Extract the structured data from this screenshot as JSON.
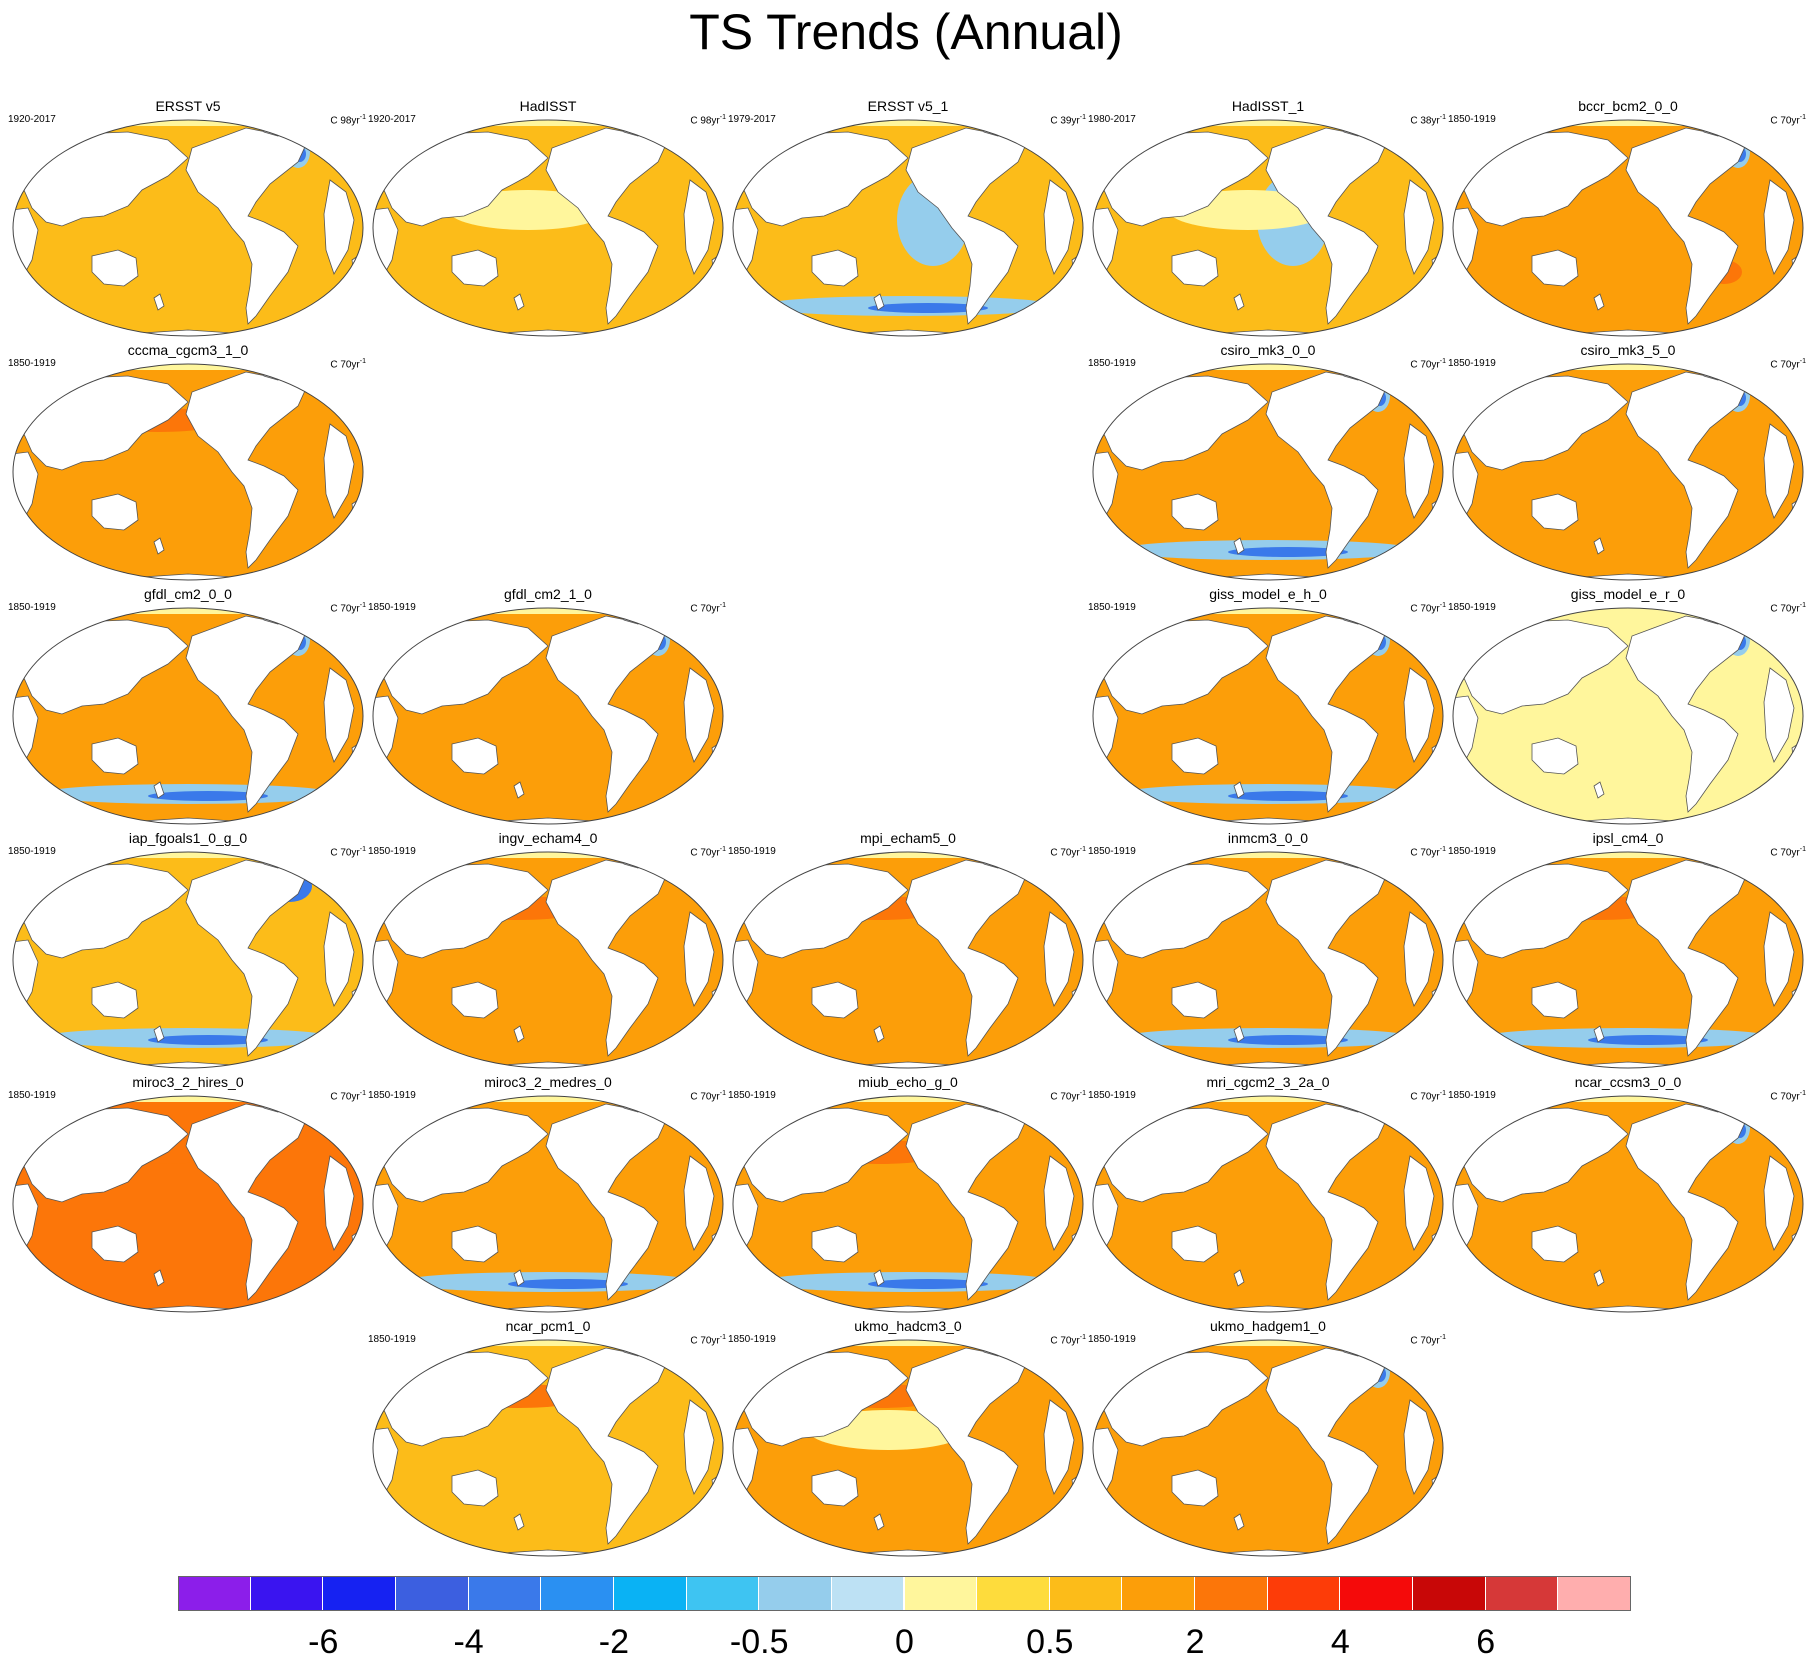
{
  "title": "TS Trends (Annual)",
  "legend_colors": [
    "#8c1eea",
    "#3a14f0",
    "#1622f2",
    "#3c5fe0",
    "#3a79ea",
    "#2a90f2",
    "#0ab2f4",
    "#3ec4f2",
    "#95cdec",
    "#bde1f4",
    "#fff69c",
    "#fedc3c",
    "#fcbc19",
    "#fc9e09",
    "#fc7609",
    "#fd3c08",
    "#f50a0a",
    "#c80707",
    "#d63838",
    "#ffaeae"
  ],
  "legend_labels": [
    "-6",
    "-4",
    "-2",
    "-0.5",
    "0",
    "0.5",
    "2",
    "4",
    "6"
  ],
  "ocean_colors": {
    "cool": "#fcbc19",
    "warm": "#fc9e09",
    "hot": "#fc7609",
    "pale": "#fff69c",
    "blue": "#95cdec",
    "deep_blue": "#3a79ea",
    "purple": "#3a14f0"
  },
  "panels": [
    {
      "name": "ERSST v5",
      "period": "1920-2017",
      "units": "C 98yr",
      "regime": "cool",
      "features": [
        "blue_natl"
      ]
    },
    {
      "name": "HadISST",
      "period": "1920-2017",
      "units": "C 98yr",
      "regime": "cool",
      "features": [
        "pale_tropics"
      ]
    },
    {
      "name": "ERSST v5_1",
      "period": "1979-2017",
      "units": "C 39yr",
      "regime": "cool",
      "features": [
        "blue_epac",
        "blue_south"
      ]
    },
    {
      "name": "HadISST_1",
      "period": "1980-2017",
      "units": "C 38yr",
      "regime": "cool",
      "features": [
        "blue_epac",
        "pale_tropics"
      ]
    },
    {
      "name": "bccr_bcm2_0_0",
      "period": "1850-1919",
      "units": "C 70yr",
      "regime": "warm",
      "features": [
        "blue_natl",
        "hot_south"
      ]
    },
    {
      "name": "cccma_cgcm3_1_0",
      "period": "1850-1919",
      "units": "C 70yr",
      "regime": "warm",
      "features": [
        "hot_npac"
      ]
    },
    {
      "name": "csiro_mk3_0_0",
      "period": "1850-1919",
      "units": "C 70yr",
      "regime": "warm",
      "features": [
        "blue_natl",
        "blue_south"
      ]
    },
    {
      "name": "csiro_mk3_5_0",
      "period": "1850-1919",
      "units": "C 70yr",
      "regime": "warm",
      "features": [
        "blue_natl"
      ]
    },
    {
      "name": "gfdl_cm2_0_0",
      "period": "1850-1919",
      "units": "C 70yr",
      "regime": "warm",
      "features": [
        "blue_south",
        "blue_natl"
      ]
    },
    {
      "name": "gfdl_cm2_1_0",
      "period": "1850-1919",
      "units": "C 70yr",
      "regime": "warm",
      "features": [
        "blue_natl"
      ]
    },
    {
      "name": "giss_model_e_h_0",
      "period": "1850-1919",
      "units": "C 70yr",
      "regime": "warm",
      "features": [
        "blue_natl",
        "blue_south"
      ]
    },
    {
      "name": "giss_model_e_r_0",
      "period": "1850-1919",
      "units": "C 70yr",
      "regime": "pale",
      "features": [
        "blue_natl"
      ]
    },
    {
      "name": "iap_fgoals1_0_g_0",
      "period": "1850-1919",
      "units": "C 70yr",
      "regime": "cool",
      "features": [
        "purple_natl",
        "blue_south"
      ]
    },
    {
      "name": "ingv_echam4_0",
      "period": "1850-1919",
      "units": "C 70yr",
      "regime": "warm",
      "features": [
        "hot_npac"
      ]
    },
    {
      "name": "mpi_echam5_0",
      "period": "1850-1919",
      "units": "C 70yr",
      "regime": "warm",
      "features": [
        "hot_npac"
      ]
    },
    {
      "name": "inmcm3_0_0",
      "period": "1850-1919",
      "units": "C 70yr",
      "regime": "warm",
      "features": [
        "blue_south"
      ]
    },
    {
      "name": "ipsl_cm4_0",
      "period": "1850-1919",
      "units": "C 70yr",
      "regime": "warm",
      "features": [
        "hot_npac",
        "blue_south"
      ]
    },
    {
      "name": "miroc3_2_hires_0",
      "period": "1850-1919",
      "units": "C 70yr",
      "regime": "hot",
      "features": [
        "hot_npac"
      ]
    },
    {
      "name": "miroc3_2_medres_0",
      "period": "1850-1919",
      "units": "C 70yr",
      "regime": "warm",
      "features": [
        "blue_south"
      ]
    },
    {
      "name": "miub_echo_g_0",
      "period": "1850-1919",
      "units": "C 70yr",
      "regime": "warm",
      "features": [
        "hot_npac",
        "blue_south"
      ]
    },
    {
      "name": "mri_cgcm2_3_2a_0",
      "period": "1850-1919",
      "units": "C 70yr",
      "regime": "warm",
      "features": []
    },
    {
      "name": "ncar_ccsm3_0_0",
      "period": "1850-1919",
      "units": "C 70yr",
      "regime": "warm",
      "features": [
        "blue_natl"
      ]
    },
    {
      "name": "ncar_pcm1_0",
      "period": "1850-1919",
      "units": "C 70yr",
      "regime": "cool",
      "features": [
        "hot_npac"
      ]
    },
    {
      "name": "ukmo_hadcm3_0",
      "period": "1850-1919",
      "units": "C 70yr",
      "regime": "warm",
      "features": [
        "hot_npac",
        "pale_tropics"
      ]
    },
    {
      "name": "ukmo_hadgem1_0",
      "period": "1850-1919",
      "units": "C 70yr",
      "regime": "warm",
      "features": [
        "blue_natl"
      ]
    }
  ]
}
